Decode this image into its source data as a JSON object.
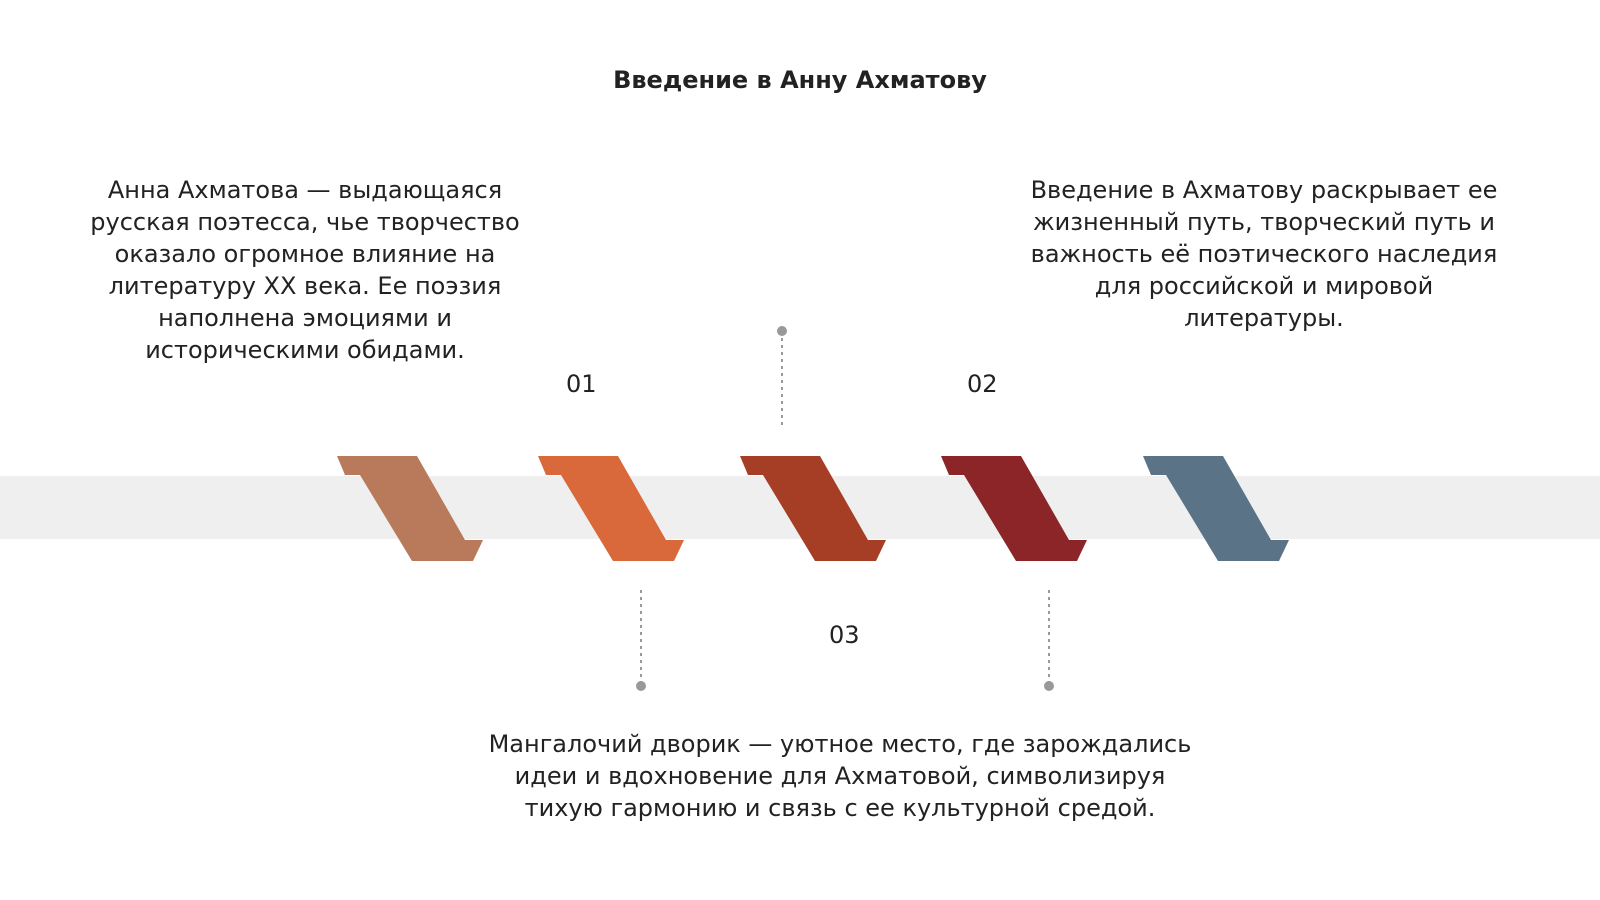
{
  "title": "Введение в Анну Ахматову",
  "items": [
    {
      "number": "01",
      "lines": [
        "Анна Ахматова — выдающаяся",
        "русская поэтесса, чье творчество",
        "оказало огромное влияние на",
        "литературу XX века. Ее поэзия",
        "наполнена эмоциями и",
        "историческими обидами."
      ]
    },
    {
      "number": "02",
      "lines": [
        "Введение в Ахматову раскрывает ее",
        "жизненный путь, творческий путь и",
        "важность её поэтического наследия",
        "для российской и мировой",
        "литературы."
      ]
    },
    {
      "number": "03",
      "lines": [
        "Мангалочий дворик — уютное место, где зарождались",
        "идеи и вдохновение для Ахматовой, символизируя",
        "тихую гармонию и связь с ее культурной средой."
      ]
    }
  ]
}
